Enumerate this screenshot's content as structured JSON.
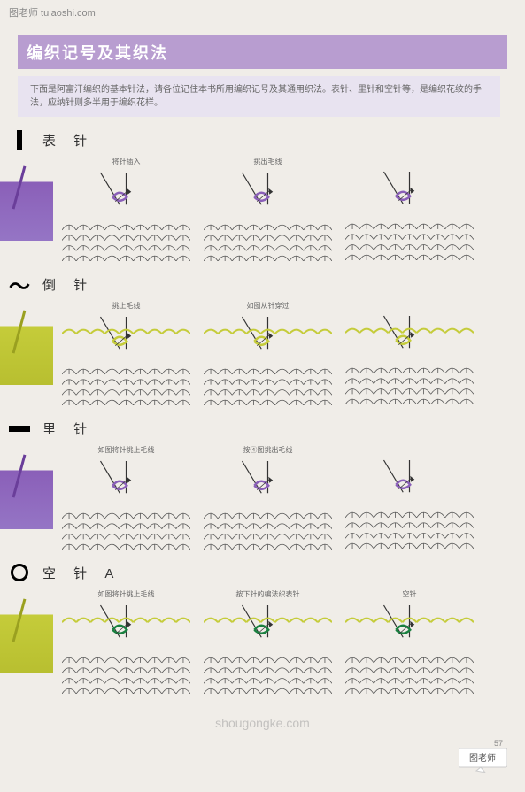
{
  "watermark_top": "图老师 tulaoshi.com",
  "watermark_middle": "shougongke.com",
  "watermark_bottom_text": "图老师",
  "page_number": "57",
  "header": {
    "title": "编织记号及其织法"
  },
  "intro": "下面是阿富汗编织的基本针法，请各位记住本书所用编织记号及其通用织法。表针、里针和空针等，是编织花纹的手法，应纳针则多半用于编织花样。",
  "colors": {
    "purple_yarn": "#8a5fb8",
    "yellow_yarn": "#c5cc3a",
    "diagram_line": "#333333",
    "header_bg": "#b89dd0",
    "intro_bg": "#e8e3f0"
  },
  "sections": [
    {
      "id": "biao-zhen",
      "symbol_type": "vertical-bar",
      "name": "表 针",
      "photo_color": "purple",
      "diagrams": [
        {
          "caption": "将针插入",
          "highlight": "#8a5fb8"
        },
        {
          "caption": "挑出毛线",
          "highlight": "#8a5fb8"
        },
        {
          "caption": "",
          "highlight": "#8a5fb8"
        }
      ]
    },
    {
      "id": "dao-zhen",
      "symbol_type": "wave",
      "name": "倒 针",
      "photo_color": "yellow",
      "diagrams": [
        {
          "caption": "挑上毛线",
          "highlight": "#c5cc3a"
        },
        {
          "caption": "如图从针穿过",
          "highlight": "#c5cc3a"
        },
        {
          "caption": "",
          "highlight": "#c5cc3a"
        }
      ]
    },
    {
      "id": "li-zhen",
      "symbol_type": "horizontal-bar",
      "name": "里 针",
      "photo_color": "purple",
      "diagrams": [
        {
          "caption": "如图将针挑上毛线",
          "highlight": "#8a5fb8"
        },
        {
          "caption": "按④图挑出毛线",
          "highlight": "#8a5fb8"
        },
        {
          "caption": "",
          "highlight": "#8a5fb8"
        }
      ]
    },
    {
      "id": "kong-zhen",
      "symbol_type": "circle",
      "name": "空 针 A",
      "photo_color": "yellow",
      "diagrams": [
        {
          "caption": "如图将针挑上毛线",
          "highlight": "#1a8040"
        },
        {
          "caption": "按下针的编法织表针",
          "highlight": "#1a8040"
        },
        {
          "caption": "空针",
          "highlight": "#1a8040"
        }
      ]
    }
  ]
}
